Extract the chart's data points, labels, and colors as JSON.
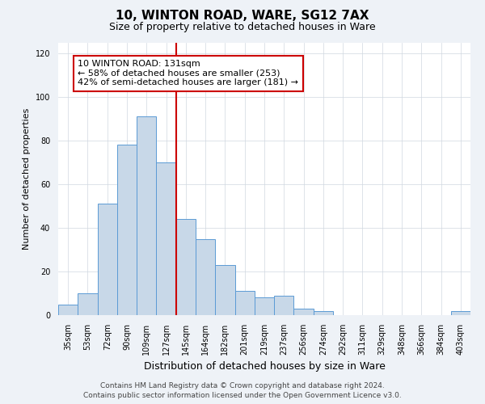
{
  "title": "10, WINTON ROAD, WARE, SG12 7AX",
  "subtitle": "Size of property relative to detached houses in Ware",
  "xlabel": "Distribution of detached houses by size in Ware",
  "ylabel": "Number of detached properties",
  "bar_labels": [
    "35sqm",
    "53sqm",
    "72sqm",
    "90sqm",
    "109sqm",
    "127sqm",
    "145sqm",
    "164sqm",
    "182sqm",
    "201sqm",
    "219sqm",
    "237sqm",
    "256sqm",
    "274sqm",
    "292sqm",
    "311sqm",
    "329sqm",
    "348sqm",
    "366sqm",
    "384sqm",
    "403sqm"
  ],
  "bar_values": [
    5,
    10,
    51,
    78,
    91,
    70,
    44,
    35,
    23,
    11,
    8,
    9,
    3,
    2,
    0,
    0,
    0,
    0,
    0,
    0,
    2
  ],
  "bar_color": "#c8d8e8",
  "bar_edgecolor": "#5b9bd5",
  "bar_linewidth": 0.7,
  "vline_color": "#cc0000",
  "vline_x_index": 5.5,
  "annotation_text": "10 WINTON ROAD: 131sqm\n← 58% of detached houses are smaller (253)\n42% of semi-detached houses are larger (181) →",
  "annotation_box_edgecolor": "#cc0000",
  "annotation_box_facecolor": "#ffffff",
  "ylim": [
    0,
    125
  ],
  "yticks": [
    0,
    20,
    40,
    60,
    80,
    100,
    120
  ],
  "footer_line1": "Contains HM Land Registry data © Crown copyright and database right 2024.",
  "footer_line2": "Contains public sector information licensed under the Open Government Licence v3.0.",
  "background_color": "#eef2f7",
  "plot_background_color": "#ffffff",
  "grid_color": "#d0d8e0",
  "title_fontsize": 11,
  "subtitle_fontsize": 9,
  "xlabel_fontsize": 9,
  "ylabel_fontsize": 8,
  "tick_fontsize": 7,
  "annotation_fontsize": 8,
  "footer_fontsize": 6.5
}
